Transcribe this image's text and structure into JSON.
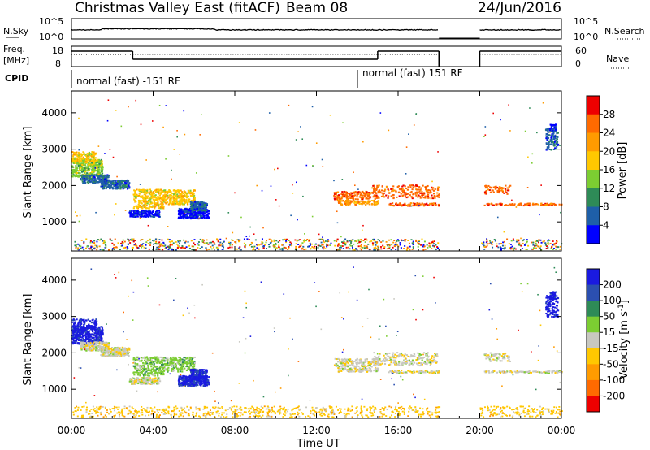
{
  "header": {
    "title": "Christmas Valley East (fitACF)",
    "beam": "Beam 08",
    "date": "24/Jun/2016"
  },
  "panels": {
    "nsky_label": "N.Sky",
    "nsky_ticks": [
      "10^5",
      "10^0"
    ],
    "nsearch_label": "N.Search",
    "nsearch_ticks": [
      "10^5",
      "10^0"
    ],
    "freq_label": "Freq.",
    "freq_unit": "[MHz]",
    "freq_ticks": [
      "18",
      "8"
    ],
    "nave_label": "Nave",
    "nave_ticks": [
      "60",
      "0"
    ],
    "cpid_label": "CPID",
    "cpid_segments": [
      "normal (fast) -151 RF",
      "normal (fast) 151 RF"
    ]
  },
  "chart_data": [
    {
      "type": "heatmap",
      "name": "power",
      "ylabel": "Slant Range [km]",
      "yticks": [
        "4000",
        "3000",
        "2000",
        "1000"
      ],
      "colorbar": {
        "label": "Power [dB]",
        "ticks": [
          "28",
          "24",
          "20",
          "16",
          "12",
          "8",
          "4"
        ],
        "colors": [
          "#ee0000",
          "#ff6a00",
          "#ff9b00",
          "#ffc800",
          "#7ccd32",
          "#2e8b57",
          "#1e5fa8",
          "#0000ff"
        ]
      }
    },
    {
      "type": "heatmap",
      "name": "velocity",
      "ylabel": "Slant Range [km]",
      "yticks": [
        "4000",
        "3000",
        "2000",
        "1000"
      ],
      "xlabel": "Time UT",
      "xticks": [
        "00:00",
        "04:00",
        "08:00",
        "12:00",
        "16:00",
        "20:00",
        "00:00"
      ],
      "colorbar": {
        "label": "Velocity [m s^-1]",
        "ticks": [
          "200",
          "100",
          "50",
          "15",
          "-15",
          "-50",
          "-100",
          "-200"
        ],
        "colors": [
          "#1a1ae0",
          "#2b4fb0",
          "#2e8b57",
          "#7ccd32",
          "#c8c8c0",
          "#ffc800",
          "#ff9b00",
          "#ff6a00",
          "#ee0000"
        ]
      }
    }
  ],
  "data_gap_utc": [
    18.0,
    20.0
  ]
}
